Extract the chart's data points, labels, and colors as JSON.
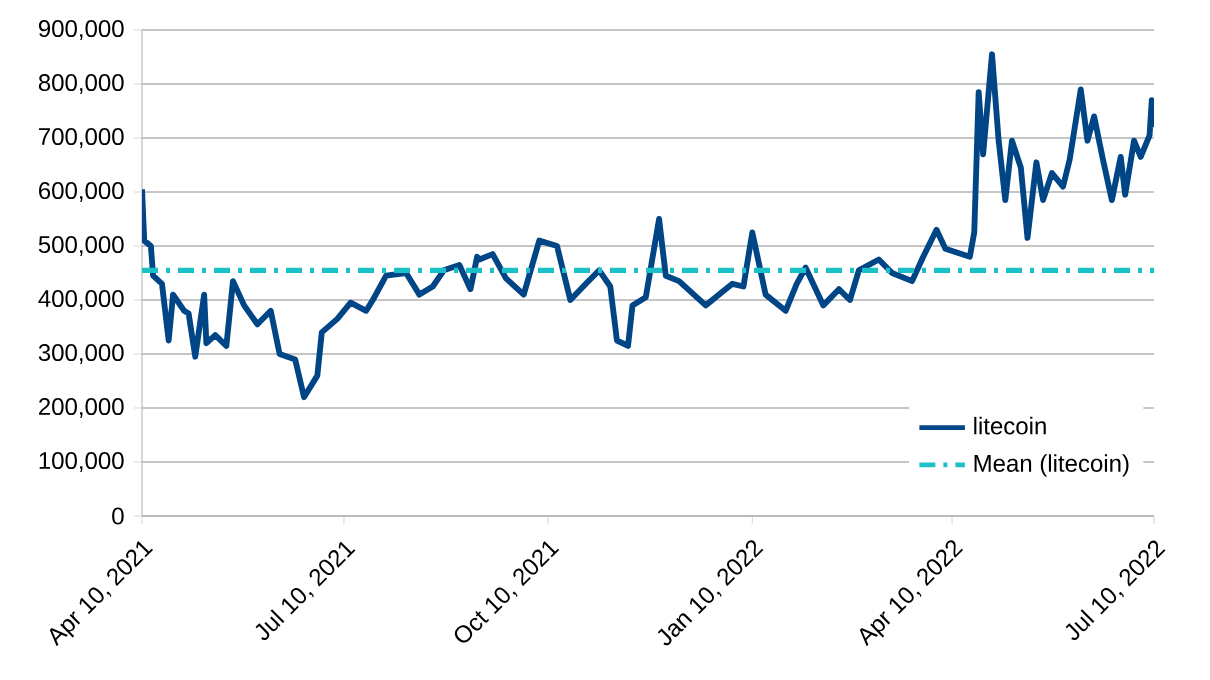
{
  "chart_data": {
    "type": "line",
    "x": [
      "2021-04-10",
      "2021-04-11",
      "2021-04-14",
      "2021-04-15",
      "2021-04-19",
      "2021-04-22",
      "2021-04-24",
      "2021-04-29",
      "2021-05-01",
      "2021-05-04",
      "2021-05-08",
      "2021-05-09",
      "2021-05-13",
      "2021-05-18",
      "2021-05-21",
      "2021-05-26",
      "2021-06-01",
      "2021-06-07",
      "2021-06-11",
      "2021-06-18",
      "2021-06-22",
      "2021-06-28",
      "2021-06-30",
      "2021-07-07",
      "2021-07-13",
      "2021-07-20",
      "2021-07-23",
      "2021-07-29",
      "2021-08-07",
      "2021-08-13",
      "2021-08-19",
      "2021-08-24",
      "2021-08-31",
      "2021-09-05",
      "2021-09-08",
      "2021-09-09",
      "2021-09-15",
      "2021-09-21",
      "2021-09-29",
      "2021-10-06",
      "2021-10-14",
      "2021-10-20",
      "2021-10-27",
      "2021-11-02",
      "2021-11-07",
      "2021-11-10",
      "2021-11-15",
      "2021-11-17",
      "2021-11-23",
      "2021-11-29",
      "2021-12-02",
      "2021-12-08",
      "2021-12-20",
      "2022-01-01",
      "2022-01-06",
      "2022-01-10",
      "2022-01-16",
      "2022-01-25",
      "2022-01-30",
      "2022-02-03",
      "2022-02-11",
      "2022-02-18",
      "2022-02-23",
      "2022-02-27",
      "2022-03-08",
      "2022-03-14",
      "2022-03-23",
      "2022-03-28",
      "2022-04-03",
      "2022-04-07",
      "2022-04-18",
      "2022-04-20",
      "2022-04-22",
      "2022-04-24",
      "2022-04-28",
      "2022-05-01",
      "2022-05-04",
      "2022-05-07",
      "2022-05-11",
      "2022-05-14",
      "2022-05-18",
      "2022-05-21",
      "2022-05-25",
      "2022-05-30",
      "2022-06-02",
      "2022-06-07",
      "2022-06-10",
      "2022-06-13",
      "2022-06-17",
      "2022-06-21",
      "2022-06-25",
      "2022-06-27",
      "2022-07-01",
      "2022-07-04",
      "2022-07-08",
      "2022-07-09",
      "2022-07-10"
    ],
    "series": [
      {
        "name": "litecoin",
        "color": "#004586",
        "values": [
          605000,
          510000,
          500000,
          445000,
          430000,
          325000,
          410000,
          380000,
          375000,
          295000,
          410000,
          320000,
          335000,
          315000,
          435000,
          390000,
          355000,
          380000,
          300000,
          290000,
          220000,
          260000,
          340000,
          365000,
          395000,
          380000,
          400000,
          445000,
          450000,
          410000,
          425000,
          455000,
          465000,
          420000,
          480000,
          475000,
          485000,
          440000,
          410000,
          510000,
          500000,
          400000,
          430000,
          455000,
          425000,
          325000,
          315000,
          390000,
          405000,
          550000,
          445000,
          435000,
          390000,
          430000,
          425000,
          525000,
          410000,
          380000,
          430000,
          460000,
          390000,
          420000,
          400000,
          455000,
          475000,
          450000,
          435000,
          480000,
          530000,
          495000,
          480000,
          525000,
          785000,
          670000,
          855000,
          695000,
          585000,
          695000,
          645000,
          515000,
          655000,
          585000,
          635000,
          610000,
          660000,
          790000,
          695000,
          740000,
          660000,
          585000,
          665000,
          595000,
          695000,
          665000,
          705000,
          770000,
          720000
        ]
      }
    ],
    "xlim": [
      "2021-04-10",
      "2022-07-10"
    ],
    "xticks": [
      {
        "value": "2021-04-10",
        "label": "Apr 10, 2021"
      },
      {
        "value": "2021-07-10",
        "label": "Jul 10, 2021"
      },
      {
        "value": "2021-10-10",
        "label": "Oct 10, 2021"
      },
      {
        "value": "2022-01-10",
        "label": "Jan 10, 2022"
      },
      {
        "value": "2022-04-10",
        "label": "Apr 10, 2022"
      },
      {
        "value": "2022-07-10",
        "label": "Jul 10, 2022"
      }
    ],
    "ylim": [
      0,
      900000
    ],
    "yticks": [
      {
        "value": 0,
        "label": "0"
      },
      {
        "value": 100000,
        "label": "100,000"
      },
      {
        "value": 200000,
        "label": "200,000"
      },
      {
        "value": 300000,
        "label": "300,000"
      },
      {
        "value": 400000,
        "label": "400,000"
      },
      {
        "value": 500000,
        "label": "500,000"
      },
      {
        "value": 600000,
        "label": "600,000"
      },
      {
        "value": 700000,
        "label": "700,000"
      },
      {
        "value": 800000,
        "label": "800,000"
      },
      {
        "value": 900000,
        "label": "900,000"
      }
    ],
    "ref_lines": [
      {
        "axis": "y",
        "value": 455000,
        "label": "Mean (litecoin)",
        "color": "#1cc0c8",
        "line_style": "dashdot"
      }
    ],
    "grid": "y",
    "legend": "bottom right",
    "marker": "none",
    "line_style": "solid"
  }
}
